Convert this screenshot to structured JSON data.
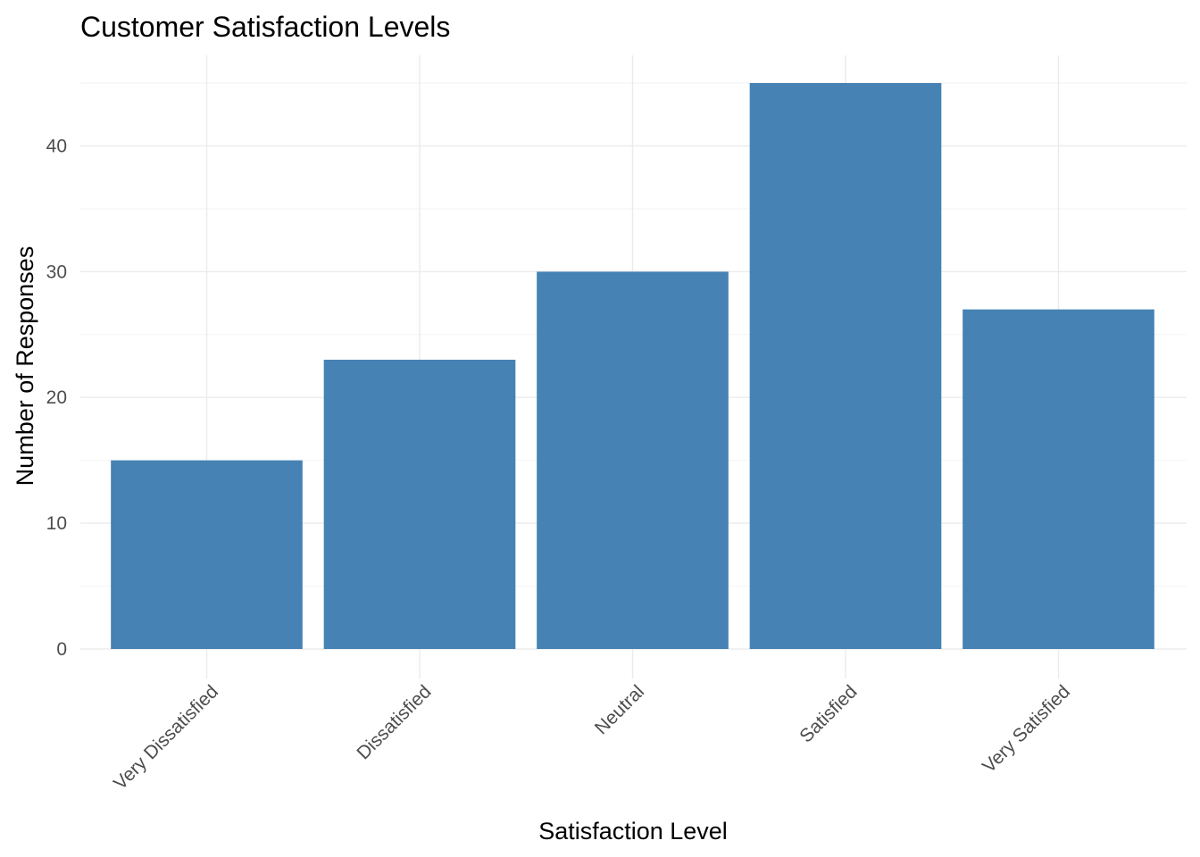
{
  "chart_data": {
    "type": "bar",
    "title": "Customer Satisfaction Levels",
    "xlabel": "Satisfaction Level",
    "ylabel": "Number of Responses",
    "categories": [
      "Very Dissatisfied",
      "Dissatisfied",
      "Neutral",
      "Satisfied",
      "Very Satisfied"
    ],
    "values": [
      15,
      23,
      30,
      45,
      27
    ],
    "ylim": [
      0,
      47.25
    ],
    "yticks": [
      0,
      10,
      20,
      30,
      40
    ],
    "ytick_labels": [
      "0",
      "10",
      "20",
      "30",
      "40"
    ],
    "yminor": [
      5,
      15,
      25,
      35,
      45
    ],
    "grid": true,
    "legend": "none",
    "bar_color": "#4682B4"
  }
}
